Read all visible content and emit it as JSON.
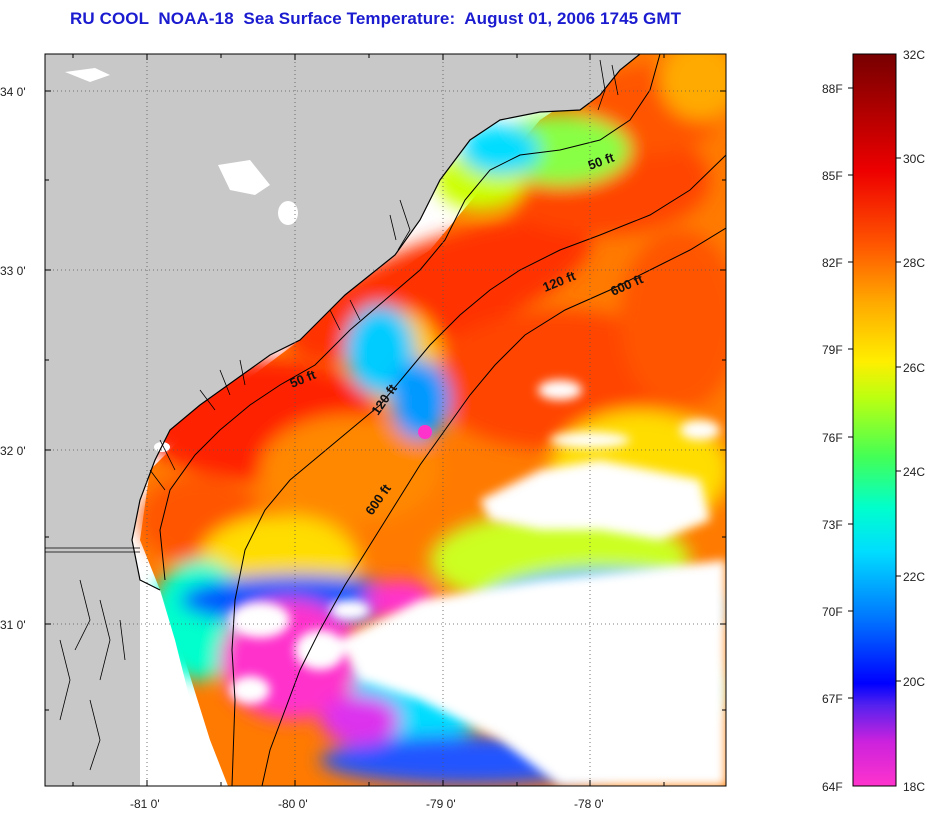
{
  "title": "RU COOL  NOAA-18  Sea Surface Temperature:  August 01, 2006 1745 GMT",
  "map": {
    "lat_ticks": [
      "34 0'",
      "33 0'",
      "32 0'",
      "31 0'"
    ],
    "lon_ticks": [
      "-81 0'",
      "-80 0'",
      "-79 0'",
      "-78 0'"
    ],
    "contours": [
      {
        "id": "50ft-north",
        "label": "50 ft"
      },
      {
        "id": "120ft-north",
        "label": "120 ft"
      },
      {
        "id": "600ft-north",
        "label": "600 ft"
      },
      {
        "id": "50ft-south",
        "label": "50 ft"
      },
      {
        "id": "120ft-south",
        "label": "120 ft"
      },
      {
        "id": "600ft-south",
        "label": "600 ft"
      }
    ],
    "land_color": "#c8c8c8",
    "cloud_color": "#ffffff"
  },
  "colorbar": {
    "fahrenheit_labels": [
      "88F",
      "85F",
      "82F",
      "79F",
      "76F",
      "73F",
      "70F",
      "67F",
      "64F"
    ],
    "celsius_labels": [
      "32C",
      "30C",
      "28C",
      "26C",
      "24C",
      "22C",
      "20C",
      "18C"
    ],
    "colors": [
      "#ff33cc",
      "#7722ee",
      "#0000ff",
      "#0077ff",
      "#00ccff",
      "#00ffcc",
      "#55ff55",
      "#ccff00",
      "#ffee00",
      "#ffaa00",
      "#ff5500",
      "#ee0000",
      "#aa0000",
      "#770000"
    ]
  }
}
